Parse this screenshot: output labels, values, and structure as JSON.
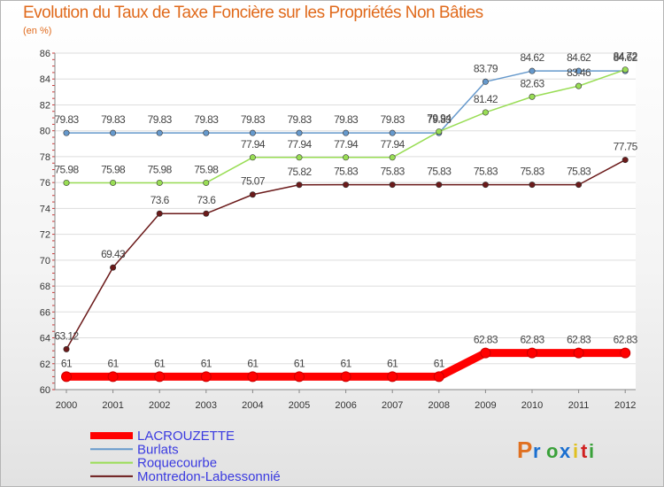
{
  "chart_data": {
    "type": "line",
    "title": "Evolution du Taux de Taxe Foncière sur les Propriétés Non Bâties",
    "subtitle": "(en %)",
    "xlabel": "",
    "ylabel": "(en %)",
    "ylim": [
      60,
      86
    ],
    "yticks": [
      "60",
      "62",
      "64",
      "66",
      "68",
      "70",
      "72",
      "74",
      "76",
      "78",
      "80",
      "82",
      "84",
      "86"
    ],
    "categories": [
      "2000",
      "2001",
      "2002",
      "2003",
      "2004",
      "2005",
      "2006",
      "2007",
      "2008",
      "2009",
      "2010",
      "2011",
      "2012"
    ],
    "grid": true,
    "legend_position": "bottom-left",
    "series": [
      {
        "name": "LACROUZETTE",
        "color": "#ff0000",
        "values": [
          61,
          61,
          61,
          61,
          61,
          61,
          61,
          61,
          61,
          62.83,
          62.83,
          62.83,
          62.83
        ],
        "labels": [
          "61",
          "61",
          "61",
          "61",
          "61",
          "61",
          "61",
          "61",
          "61",
          "62.83",
          "62.83",
          "62.83",
          "62.83"
        ]
      },
      {
        "name": "Burlats",
        "color": "#6699cc",
        "values": [
          79.83,
          79.83,
          79.83,
          79.83,
          79.83,
          79.83,
          79.83,
          79.83,
          79.83,
          83.79,
          84.62,
          84.62,
          84.62
        ],
        "labels": [
          "79.83",
          "79.83",
          "79.83",
          "79.83",
          "79.83",
          "79.83",
          "79.83",
          "79.83",
          "79.83",
          "83.79",
          "84.62",
          "84.62",
          "84.62"
        ]
      },
      {
        "name": "Roquecourbe",
        "color": "#99dd55",
        "values": [
          75.98,
          75.98,
          75.98,
          75.98,
          77.94,
          77.94,
          77.94,
          77.94,
          79.94,
          81.42,
          82.63,
          83.46,
          84.72
        ],
        "labels": [
          "75.98",
          "75.98",
          "75.98",
          "75.98",
          "77.94",
          "77.94",
          "77.94",
          "77.94",
          "79.94",
          "81.42",
          "82.63",
          "83.46",
          "84.72"
        ]
      },
      {
        "name": "Montredon-Labessonnié",
        "color": "#6b1a1a",
        "values": [
          63.12,
          69.43,
          73.6,
          73.6,
          75.07,
          75.82,
          75.83,
          75.83,
          75.83,
          75.83,
          75.83,
          75.83,
          77.75
        ],
        "labels": [
          "63.12",
          "69.43",
          "73.6",
          "73.6",
          "75.07",
          "75.82",
          "75.83",
          "75.83",
          "75.83",
          "75.83",
          "75.83",
          "75.83",
          "77.75"
        ]
      }
    ]
  },
  "logo": {
    "text": "Proxiti"
  }
}
